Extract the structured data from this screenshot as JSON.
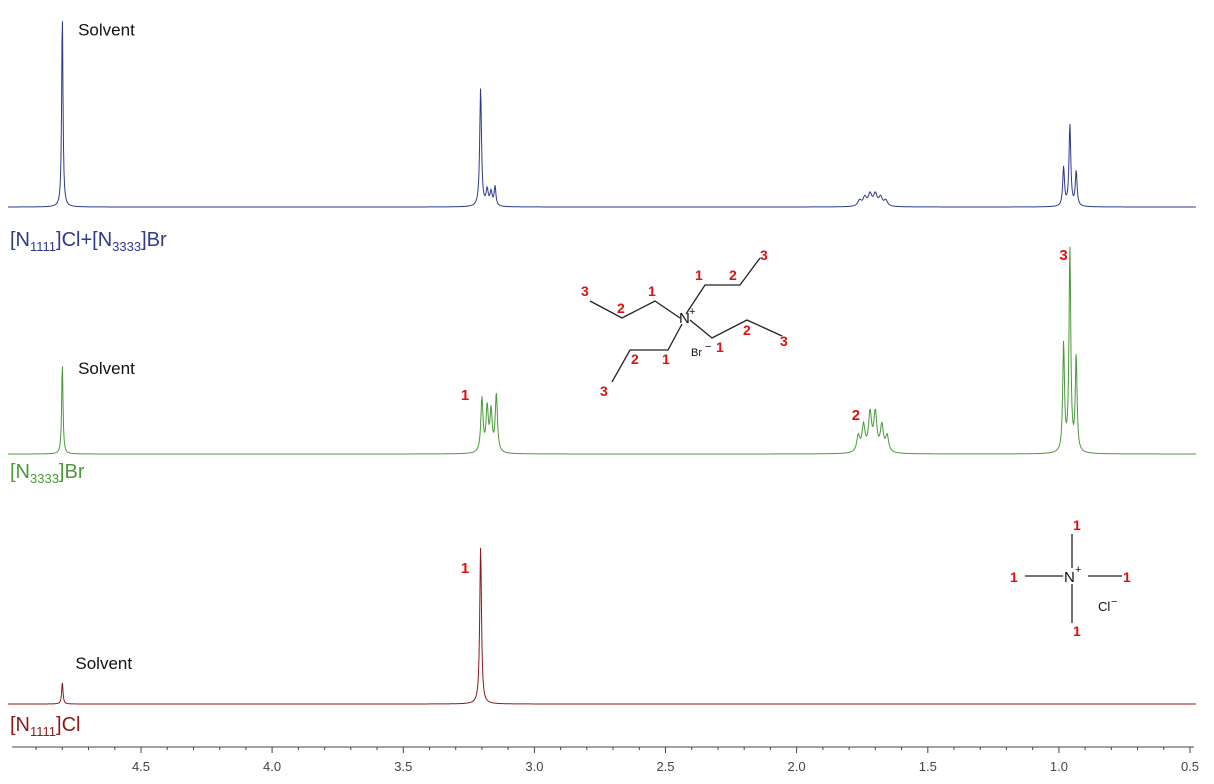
{
  "chart_data": {
    "type": "line",
    "x_axis": {
      "min": 0.5,
      "max": 4.95,
      "reversed": true,
      "ticks": [
        4.5,
        4.0,
        3.5,
        3.0,
        2.5,
        2.0,
        1.5,
        1.0,
        0.5
      ],
      "tick_labels": [
        "4.5",
        "4.0",
        "3.5",
        "3.0",
        "2.5",
        "2.0",
        "1.5",
        "1.0",
        "0.5"
      ]
    },
    "grid": false,
    "series": [
      {
        "name_main": "[N",
        "name_sub1": "1111",
        "name_mid": "]Cl+[N",
        "name_sub2": "3333",
        "name_end": "]Br",
        "color": "#2e3a8c",
        "peaks": [
          {
            "x": 4.8,
            "h": 1.0,
            "w": 0.003
          },
          {
            "x": 3.205,
            "h": 0.61,
            "w": 0.004
          },
          {
            "x": 3.18,
            "h": 0.08,
            "w": 0.005
          },
          {
            "x": 3.165,
            "h": 0.07,
            "w": 0.005
          },
          {
            "x": 3.15,
            "h": 0.1,
            "w": 0.004
          },
          {
            "x": 1.76,
            "h": 0.03,
            "w": 0.008
          },
          {
            "x": 1.74,
            "h": 0.045,
            "w": 0.008
          },
          {
            "x": 1.72,
            "h": 0.06,
            "w": 0.008
          },
          {
            "x": 1.7,
            "h": 0.06,
            "w": 0.008
          },
          {
            "x": 1.68,
            "h": 0.045,
            "w": 0.008
          },
          {
            "x": 1.66,
            "h": 0.03,
            "w": 0.008
          },
          {
            "x": 0.982,
            "h": 0.2,
            "w": 0.004
          },
          {
            "x": 0.958,
            "h": 0.42,
            "w": 0.004
          },
          {
            "x": 0.934,
            "h": 0.18,
            "w": 0.004
          }
        ],
        "annotations": [
          {
            "text": "Solvent",
            "x": 4.74,
            "level": 0.88,
            "kind": "solvent"
          }
        ]
      },
      {
        "name_main": "[N",
        "name_sub1": "3333",
        "name_end": "]Br",
        "color": "#4a9a3a",
        "peaks": [
          {
            "x": 4.8,
            "h": 0.46,
            "w": 0.003
          },
          {
            "x": 3.2,
            "h": 0.27,
            "w": 0.005
          },
          {
            "x": 3.18,
            "h": 0.22,
            "w": 0.005
          },
          {
            "x": 3.165,
            "h": 0.2,
            "w": 0.005
          },
          {
            "x": 3.145,
            "h": 0.29,
            "w": 0.005
          },
          {
            "x": 1.765,
            "h": 0.08,
            "w": 0.007
          },
          {
            "x": 1.745,
            "h": 0.13,
            "w": 0.007
          },
          {
            "x": 1.72,
            "h": 0.19,
            "w": 0.007
          },
          {
            "x": 1.7,
            "h": 0.19,
            "w": 0.007
          },
          {
            "x": 1.675,
            "h": 0.13,
            "w": 0.007
          },
          {
            "x": 1.655,
            "h": 0.08,
            "w": 0.007
          },
          {
            "x": 0.982,
            "h": 0.54,
            "w": 0.004
          },
          {
            "x": 0.958,
            "h": 1.02,
            "w": 0.004
          },
          {
            "x": 0.934,
            "h": 0.48,
            "w": 0.004
          }
        ],
        "annotations": [
          {
            "text": "Solvent",
            "x": 4.74,
            "level": 0.4,
            "kind": "solvent"
          },
          {
            "text": "1",
            "x": 3.28,
            "level": 0.27,
            "kind": "peak"
          },
          {
            "text": "2",
            "x": 1.79,
            "level": 0.17,
            "kind": "peak"
          },
          {
            "text": "3",
            "x": 0.998,
            "level": 0.97,
            "kind": "peak"
          }
        ]
      },
      {
        "name_main": "[N",
        "name_sub1": "1111",
        "name_end": "]Cl",
        "color": "#8b1a1a",
        "peaks": [
          {
            "x": 4.8,
            "h": 0.14,
            "w": 0.003
          },
          {
            "x": 3.205,
            "h": 1.0,
            "w": 0.004
          }
        ],
        "annotations": [
          {
            "text": "Solvent",
            "x": 4.75,
            "level": 0.22,
            "kind": "solvent"
          },
          {
            "text": "1",
            "x": 3.28,
            "level": 0.83,
            "kind": "peak"
          }
        ]
      }
    ]
  },
  "structures": {
    "tetrapropyl": {
      "atom": "N",
      "charge": "+",
      "anion": "Br",
      "anion_charge": "−",
      "labels": [
        "3",
        "2",
        "1",
        "1",
        "2",
        "3",
        "1",
        "2",
        "3",
        "2",
        "1",
        "3"
      ]
    },
    "tetramethyl": {
      "atom": "N",
      "charge": "+",
      "anion": "Cl",
      "anion_charge": "−",
      "labels": [
        "1",
        "1",
        "1",
        "1"
      ]
    }
  }
}
